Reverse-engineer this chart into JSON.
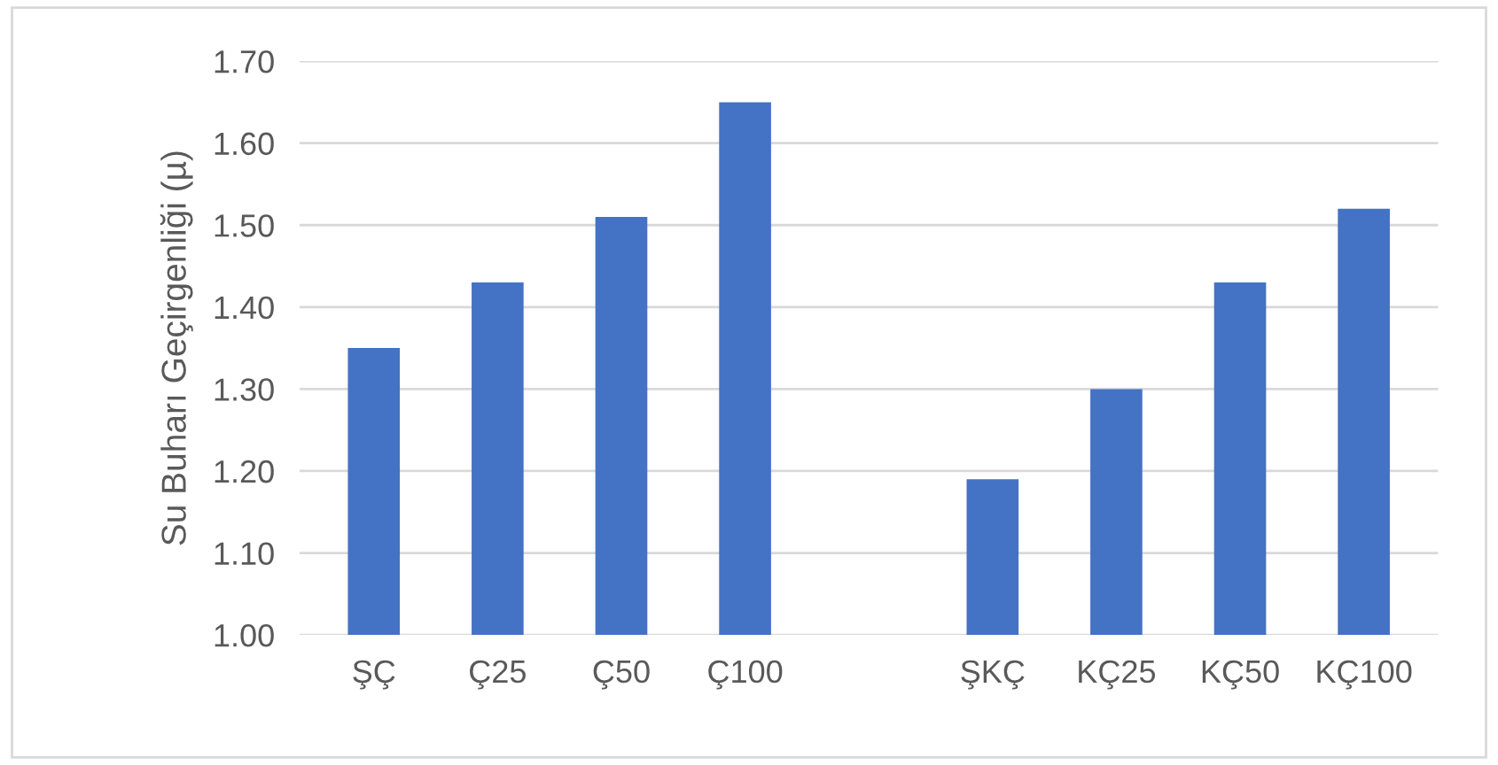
{
  "chart_data": {
    "type": "bar",
    "ylabel": "Su Buharı Geçirgenliği (µ)",
    "categories": [
      "ŞÇ",
      "Ç25",
      "Ç50",
      "Ç100",
      null,
      "ŞKÇ",
      "KÇ25",
      "KÇ50",
      "KÇ100"
    ],
    "values": [
      1.35,
      1.43,
      1.51,
      1.65,
      null,
      1.19,
      1.3,
      1.43,
      1.52
    ],
    "color": "#4472c4",
    "ylim": [
      1.0,
      1.7
    ],
    "yticks": [
      {
        "value": 1.0,
        "label": "1.00"
      },
      {
        "value": 1.1,
        "label": "1.10"
      },
      {
        "value": 1.2,
        "label": "1.20"
      },
      {
        "value": 1.3,
        "label": "1.30"
      },
      {
        "value": 1.4,
        "label": "1.40"
      },
      {
        "value": 1.5,
        "label": "1.50"
      },
      {
        "value": 1.6,
        "label": "1.60"
      },
      {
        "value": 1.7,
        "label": "1.70"
      }
    ],
    "grid": "y"
  }
}
